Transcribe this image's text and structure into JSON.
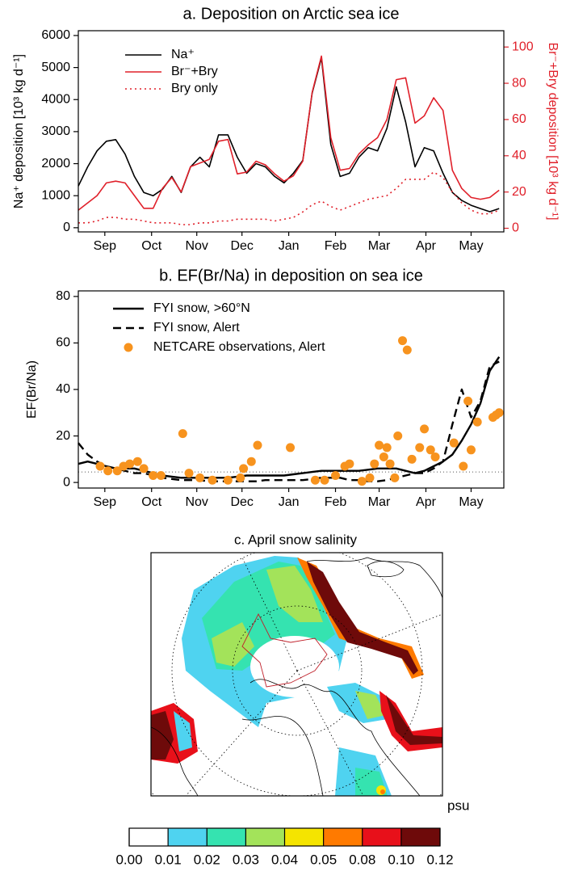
{
  "chart_data": [
    {
      "type": "line",
      "title": "a. Deposition on Arctic sea ice",
      "ylabel": "Na⁺ deposition [10³ kg d⁻¹]",
      "y2label": "Br⁻+Bry deposition [10³ kg d⁻¹]",
      "xlim": [
        0,
        273
      ],
      "ylim": [
        -130,
        6150
      ],
      "y2lim": [
        -2,
        109
      ],
      "xticks": [
        {
          "value": 17,
          "label": "Sep"
        },
        {
          "value": 47,
          "label": "Oct"
        },
        {
          "value": 76,
          "label": "Nov"
        },
        {
          "value": 105,
          "label": "Dec"
        },
        {
          "value": 135,
          "label": "Jan"
        },
        {
          "value": 165,
          "label": "Feb"
        },
        {
          "value": 193,
          "label": "Mar"
        },
        {
          "value": 223,
          "label": "Apr"
        },
        {
          "value": 252,
          "label": "May"
        }
      ],
      "yticks": [
        0,
        1000,
        2000,
        3000,
        4000,
        5000,
        6000
      ],
      "y2ticks": [
        0,
        20,
        40,
        60,
        80,
        100
      ],
      "y2color": "#e0202a",
      "legend": "upper left",
      "x": [
        0,
        6,
        12,
        18,
        24,
        30,
        36,
        42,
        48,
        54,
        60,
        66,
        72,
        78,
        84,
        90,
        96,
        102,
        108,
        114,
        120,
        126,
        132,
        138,
        144,
        150,
        156,
        162,
        168,
        174,
        180,
        186,
        192,
        198,
        204,
        210,
        216,
        222,
        228,
        234,
        240,
        246,
        252,
        258,
        264,
        270
      ],
      "series": [
        {
          "name": "Na⁺",
          "color": "#000000",
          "linestyle": "solid",
          "values": [
            1300,
            1900,
            2400,
            2700,
            2750,
            2300,
            1600,
            1100,
            1000,
            1200,
            1600,
            1100,
            1900,
            2200,
            1900,
            2900,
            2900,
            2200,
            1700,
            2000,
            1900,
            1600,
            1400,
            1700,
            2100,
            4200,
            5300,
            2600,
            1600,
            1700,
            2200,
            2500,
            2400,
            3100,
            4400,
            3300,
            1900,
            2500,
            2400,
            1700,
            1100,
            850,
            700,
            600,
            500,
            600
          ]
        },
        {
          "name": "Br⁻+Bry",
          "color": "#e0202a",
          "linestyle": "solid",
          "axis": "y2",
          "values": [
            10,
            14,
            18,
            25,
            26,
            25,
            18,
            11,
            11,
            22,
            28,
            20,
            34,
            36,
            38,
            48,
            49,
            30,
            31,
            37,
            35,
            30,
            26,
            29,
            37,
            75,
            95,
            50,
            32,
            33,
            41,
            46,
            50,
            60,
            82,
            83,
            58,
            62,
            72,
            65,
            32,
            22,
            17,
            16,
            17,
            21
          ]
        },
        {
          "name": "Bry only",
          "color": "#e0202a",
          "linestyle": "dotted",
          "axis": "y2",
          "values": [
            3,
            3,
            4,
            6,
            6,
            5,
            5,
            4,
            3,
            3,
            3,
            2,
            2,
            3,
            3,
            4,
            4,
            5,
            5,
            5,
            5,
            4,
            5,
            6,
            9,
            13,
            15,
            12,
            10,
            12,
            14,
            16,
            17,
            18,
            22,
            27,
            27,
            27,
            31,
            28,
            20,
            14,
            10,
            8,
            8,
            10
          ]
        }
      ]
    },
    {
      "type": "line",
      "title": "b. EF(Br/Na) in deposition on sea ice",
      "ylabel": "EF(Br/Na)",
      "xlim": [
        0,
        273
      ],
      "ylim": [
        -2.4,
        82.4
      ],
      "xticks": [
        {
          "value": 17,
          "label": "Sep"
        },
        {
          "value": 47,
          "label": "Oct"
        },
        {
          "value": 76,
          "label": "Nov"
        },
        {
          "value": 105,
          "label": "Dec"
        },
        {
          "value": 135,
          "label": "Jan"
        },
        {
          "value": 165,
          "label": "Feb"
        },
        {
          "value": 193,
          "label": "Mar"
        },
        {
          "value": 223,
          "label": "Apr"
        },
        {
          "value": 252,
          "label": "May"
        }
      ],
      "yticks": [
        0,
        20,
        40,
        60,
        80
      ],
      "hline": 4.5,
      "legend": "upper left",
      "x": [
        0,
        6,
        12,
        18,
        24,
        30,
        36,
        42,
        48,
        54,
        60,
        66,
        72,
        78,
        84,
        90,
        96,
        102,
        108,
        114,
        120,
        126,
        132,
        138,
        144,
        150,
        156,
        162,
        168,
        174,
        180,
        186,
        192,
        198,
        204,
        210,
        216,
        222,
        228,
        234,
        240,
        246,
        252,
        258,
        264,
        270
      ],
      "series": [
        {
          "name": "FYI snow, >60°N",
          "color": "#000000",
          "linestyle": "solid",
          "values": [
            8,
            9,
            8,
            7,
            6,
            6,
            6,
            5,
            4,
            3,
            2.5,
            2,
            2,
            2,
            2,
            2,
            2,
            2.5,
            3,
            3,
            3,
            3,
            3,
            3.5,
            4,
            4.5,
            5,
            5,
            5,
            5,
            5,
            5.5,
            6,
            6,
            6,
            5,
            4,
            5,
            7,
            9,
            12,
            18,
            25,
            34,
            48,
            54
          ]
        },
        {
          "name": "FYI snow, Alert",
          "color": "#000000",
          "linestyle": "dashed",
          "values": [
            17,
            12,
            9,
            7,
            6,
            5,
            4,
            4,
            3,
            2,
            1.5,
            1,
            1,
            1,
            0.5,
            0.5,
            0.5,
            0.5,
            0.5,
            0.5,
            1,
            1,
            1,
            1,
            1,
            1.5,
            2,
            2,
            2,
            1,
            1,
            0.5,
            0.5,
            1,
            2,
            3,
            4,
            4,
            6,
            9,
            25,
            40,
            28,
            35,
            50,
            52
          ]
        },
        {
          "name": "NETCARE observations, Alert",
          "color": "#f7931e",
          "type": "scatter",
          "x": [
            14,
            19,
            25,
            29,
            33,
            38,
            42,
            48,
            53,
            67,
            71,
            78,
            86,
            96,
            104,
            106,
            111,
            115,
            136,
            152,
            158,
            165,
            171,
            174,
            182,
            187,
            190,
            193,
            196,
            198,
            200,
            203,
            205,
            208,
            211,
            214,
            219,
            222,
            226,
            229,
            241,
            247,
            250,
            252,
            256,
            266,
            268,
            270
          ],
          "values": [
            7,
            5,
            5,
            7,
            8,
            9,
            6,
            3,
            3,
            21,
            4,
            2,
            1,
            1,
            2,
            6,
            9,
            16,
            15,
            1,
            1,
            3,
            7,
            8,
            0.5,
            2,
            8,
            16,
            11,
            15,
            8,
            2,
            20,
            61,
            57,
            10,
            15,
            23,
            14,
            11,
            17,
            7,
            35,
            14,
            26,
            28,
            29,
            30
          ]
        }
      ]
    },
    {
      "type": "map",
      "title": "c. April snow salinity",
      "colorbar": {
        "label": "psu",
        "colors": [
          "#ffffff",
          "#4fd3f0",
          "#35e3b0",
          "#a3e35a",
          "#f5e400",
          "#ff7a00",
          "#e8101a",
          "#6e0a0a"
        ],
        "ticks": [
          {
            "value": 0,
            "label": "0.00"
          },
          0.01,
          0.02,
          0.03,
          0.04,
          0.05,
          0.08,
          {
            "value": 0.1,
            "label": "0.10"
          },
          0.12
        ]
      }
    }
  ]
}
